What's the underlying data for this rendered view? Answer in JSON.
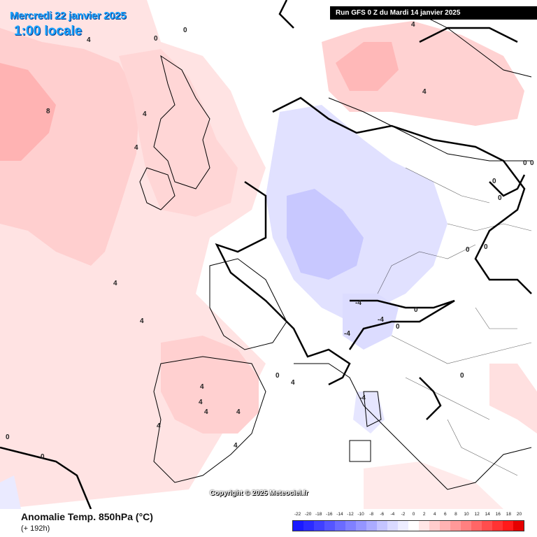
{
  "header": {
    "date": "Mercredi 22 janvier 2025",
    "time": "1:00 locale",
    "run": "Run GFS 0 Z du Mardi 14 janvier 2025"
  },
  "footer": {
    "title": "Anomalie Temp. 850hPa (°C)",
    "subtitle": "(+ 192h)",
    "copyright": "Copyright © 2025 Meteociel.fr"
  },
  "legend": {
    "labels": [
      "-22",
      "-20",
      "-18",
      "-16",
      "-14",
      "-12",
      "-10",
      "-8",
      "-6",
      "-4",
      "-2",
      "0",
      "2",
      "4",
      "6",
      "8",
      "10",
      "12",
      "14",
      "16",
      "18",
      "20"
    ],
    "colors": [
      "#1a1aff",
      "#2b2bff",
      "#4040ff",
      "#5555ff",
      "#6b6bff",
      "#8080ff",
      "#9595ff",
      "#ababff",
      "#c4c4ff",
      "#dadaff",
      "#ededff",
      "#ffffff",
      "#ffe6e6",
      "#ffcccc",
      "#ffb3b3",
      "#ff9999",
      "#ff8080",
      "#ff6666",
      "#ff4d4d",
      "#ff3333",
      "#ff1a1a",
      "#e60000"
    ]
  },
  "map": {
    "contour_labels": [
      "8",
      "4",
      "4",
      "4",
      "4",
      "4",
      "4",
      "4",
      "4",
      "4",
      "4",
      "4",
      "4",
      "4",
      "4",
      "0",
      "0",
      "0",
      "0",
      "0",
      "0",
      "0",
      "0",
      "0",
      "0",
      "0",
      "0",
      "0",
      "0",
      "-4",
      "-4",
      "-4",
      "-4"
    ]
  }
}
